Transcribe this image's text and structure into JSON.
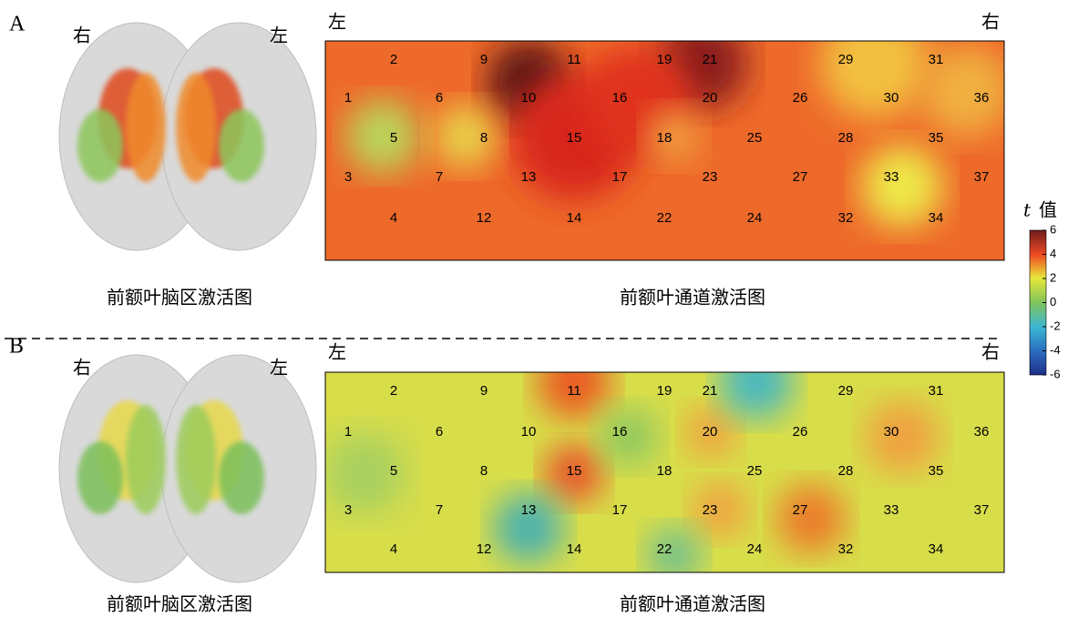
{
  "panels": [
    {
      "letter": "A",
      "brain": {
        "right": "右",
        "left": "左",
        "caption": "前额叶脑区激活图"
      },
      "channels": {
        "left": "左",
        "right": "右",
        "labels": [
          "1",
          "2",
          "3",
          "4",
          "5",
          "6",
          "7",
          "8",
          "9",
          "10",
          "11",
          "12",
          "13",
          "14",
          "15",
          "16",
          "17",
          "18",
          "19",
          "20",
          "21",
          "22",
          "23",
          "24",
          "25",
          "26",
          "27",
          "28",
          "29",
          "30",
          "31",
          "32",
          "33",
          "34",
          "35",
          "36",
          "37"
        ],
        "caption": "前额叶通道激活图"
      }
    },
    {
      "letter": "B",
      "brain": {
        "right": "右",
        "left": "左",
        "caption": "前额叶脑区激活图"
      },
      "channels": {
        "left": "左",
        "right": "右",
        "labels": [
          "1",
          "2",
          "3",
          "4",
          "5",
          "6",
          "7",
          "8",
          "9",
          "10",
          "11",
          "12",
          "13",
          "14",
          "15",
          "16",
          "17",
          "18",
          "19",
          "20",
          "21",
          "22",
          "23",
          "24",
          "25",
          "26",
          "27",
          "28",
          "29",
          "30",
          "31",
          "32",
          "33",
          "34",
          "35",
          "36",
          "37"
        ],
        "caption": "前额叶通道激活图"
      }
    }
  ],
  "colorbar": {
    "variable": "t",
    "title": "值",
    "ylim": [
      -6,
      6
    ],
    "ticks": [
      6,
      4,
      2,
      0,
      -2,
      -4,
      -6
    ]
  }
}
